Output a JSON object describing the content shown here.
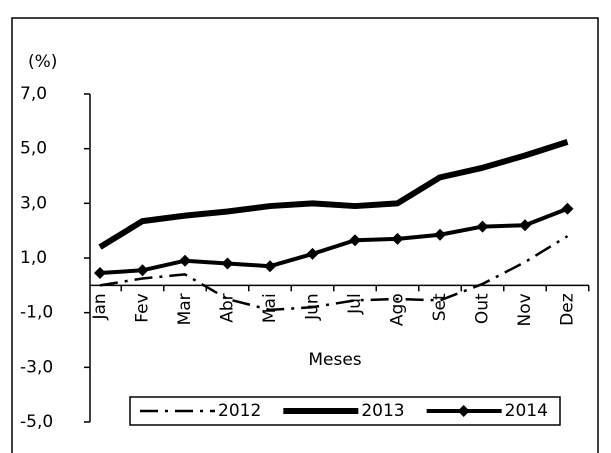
{
  "chart_data": {
    "type": "line",
    "y_label": "(%)",
    "x_label": "Meses",
    "categories": [
      "Jan",
      "Fev",
      "Mar",
      "Abr",
      "Mai",
      "Jun",
      "Jul",
      "Ago",
      "Set",
      "Out",
      "Nov",
      "Dez"
    ],
    "ylim": [
      -5,
      7
    ],
    "yticks": [
      {
        "value": 7,
        "label": "7,0"
      },
      {
        "value": 5,
        "label": "5,0"
      },
      {
        "value": 3,
        "label": "3,0"
      },
      {
        "value": 1,
        "label": "1,0"
      },
      {
        "value": -1,
        "label": "-1,0"
      },
      {
        "value": -3,
        "label": "-3,0"
      },
      {
        "value": -5,
        "label": "-5,0"
      }
    ],
    "legend": "bottom",
    "series": [
      {
        "name": "2012",
        "color": "#000000",
        "style": "dash-dot",
        "values": [
          0.0,
          0.25,
          0.4,
          -0.5,
          -0.9,
          -0.8,
          -0.55,
          -0.5,
          -0.55,
          0.05,
          0.85,
          1.8
        ]
      },
      {
        "name": "2013",
        "color": "#000000",
        "style": "thick",
        "values": [
          1.4,
          2.35,
          2.55,
          2.7,
          2.9,
          3.0,
          2.9,
          3.0,
          3.95,
          4.3,
          4.75,
          5.25
        ]
      },
      {
        "name": "2014",
        "color": "#000000",
        "style": "diamond",
        "values": [
          0.45,
          0.55,
          0.9,
          0.8,
          0.7,
          1.15,
          1.65,
          1.7,
          1.85,
          2.15,
          2.2,
          2.8
        ]
      }
    ]
  }
}
